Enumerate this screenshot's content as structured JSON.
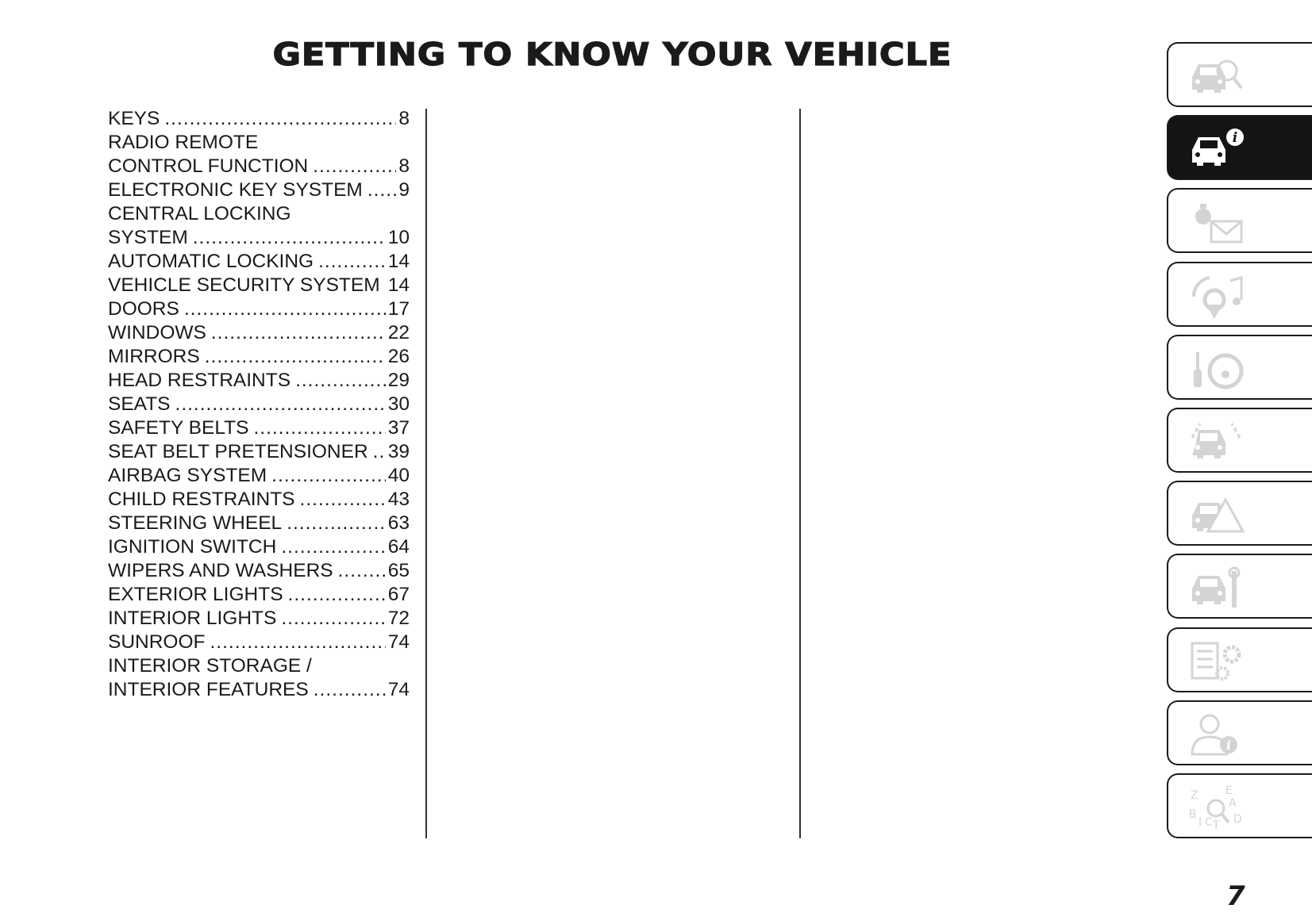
{
  "header": {
    "title": "GETTING TO KNOW YOUR VEHICLE"
  },
  "toc": [
    {
      "label": "KEYS",
      "page": "8"
    },
    {
      "label": "RADIO REMOTE",
      "page": null
    },
    {
      "label": "CONTROL FUNCTION",
      "page": "8"
    },
    {
      "label": "ELECTRONIC KEY SYSTEM",
      "page": "9"
    },
    {
      "label": "CENTRAL LOCKING",
      "page": null
    },
    {
      "label": "SYSTEM",
      "page": "10"
    },
    {
      "label": "AUTOMATIC LOCKING",
      "page": "14"
    },
    {
      "label": "VEHICLE SECURITY SYSTEM",
      "page": "14"
    },
    {
      "label": "DOORS",
      "page": "17"
    },
    {
      "label": "WINDOWS",
      "page": "22"
    },
    {
      "label": "MIRRORS",
      "page": "26"
    },
    {
      "label": "HEAD RESTRAINTS",
      "page": "29"
    },
    {
      "label": "SEATS",
      "page": "30"
    },
    {
      "label": "SAFETY BELTS",
      "page": "37"
    },
    {
      "label": "SEAT BELT PRETENSIONER",
      "page": "39"
    },
    {
      "label": "AIRBAG SYSTEM",
      "page": "40"
    },
    {
      "label": "CHILD RESTRAINTS",
      "page": "43"
    },
    {
      "label": "STEERING WHEEL",
      "page": "63"
    },
    {
      "label": "IGNITION SWITCH",
      "page": "64"
    },
    {
      "label": "WIPERS AND WASHERS",
      "page": "65"
    },
    {
      "label": "EXTERIOR LIGHTS",
      "page": "67"
    },
    {
      "label": "INTERIOR LIGHTS",
      "page": "72"
    },
    {
      "label": "SUNROOF",
      "page": "74"
    },
    {
      "label": "INTERIOR STORAGE /",
      "page": null
    },
    {
      "label": "INTERIOR FEATURES",
      "page": "74"
    }
  ],
  "side_tabs": [
    {
      "icon": "car-search-icon",
      "active": false
    },
    {
      "icon": "car-info-icon",
      "active": true
    },
    {
      "icon": "warning-light-message-icon",
      "active": false
    },
    {
      "icon": "radio-navigation-music-icon",
      "active": false
    },
    {
      "icon": "key-steering-wheel-icon",
      "active": false
    },
    {
      "icon": "car-lane-assist-icon",
      "active": false
    },
    {
      "icon": "car-emergency-warning-icon",
      "active": false
    },
    {
      "icon": "car-maintenance-wrench-icon",
      "active": false
    },
    {
      "icon": "specifications-gear-icon",
      "active": false
    },
    {
      "icon": "person-info-icon",
      "active": false
    },
    {
      "icon": "alphabetical-index-icon",
      "active": false
    }
  ],
  "colors": {
    "active_tab": "#141414",
    "icon_inactive": "#d4d4d4",
    "text": "#1a1a1a"
  },
  "footer": {
    "page_number": "7"
  }
}
